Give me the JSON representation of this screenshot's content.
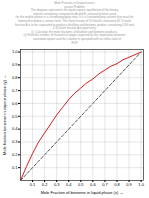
{
  "chart_data": {
    "type": "line",
    "xlabel": "Mole Fraction of benzene in liquid phase (x)",
    "ylabel": "Mole fraction benzene in vapour phase (y)",
    "annotations": [
      "Mole Fraction in Distpressures",
      "ession Problem",
      "The diagram represents the liquid-vapour equilibrium of the binary",
      "mixture containing components A and B, previously been used",
      "for the mobile phase in a chromatography step. It is a contaminating solvent that must be",
      "removed to below a certain level. The feed stream of 70 kmol/h containing 65 % mole",
      "fraction A is to be separated to produce distillate and bottoms product containing 0.90 and",
      "0.10 mole fraction A respectively.",
      "(i)  Calculate the mole fractions of distillate and bottoms products.",
      "(ii) Find the number of theoretical stages required for the separation between",
      "      saturated vapour and the column is operated with an reflux ratio of",
      "PDF"
    ],
    "x": [
      0.0,
      0.05,
      0.1,
      0.15,
      0.2,
      0.25,
      0.3,
      0.35,
      0.4,
      0.45,
      0.5,
      0.55,
      0.6,
      0.65,
      0.7,
      0.75,
      0.8,
      0.85,
      0.9,
      0.95,
      1.0
    ],
    "series": [
      {
        "color": "#cc2222",
        "line_style": "solid",
        "values": [
          0.0,
          0.11,
          0.21,
          0.3,
          0.37,
          0.44,
          0.51,
          0.57,
          0.63,
          0.68,
          0.72,
          0.76,
          0.79,
          0.83,
          0.86,
          0.89,
          0.91,
          0.94,
          0.96,
          0.98,
          1.0
        ]
      },
      {
        "color": "#555555",
        "line_style": "dashed",
        "values": [
          0.0,
          0.05,
          0.1,
          0.15,
          0.2,
          0.25,
          0.3,
          0.35,
          0.4,
          0.45,
          0.5,
          0.55,
          0.6,
          0.65,
          0.7,
          0.75,
          0.8,
          0.85,
          0.9,
          0.95,
          1.0
        ]
      }
    ],
    "xlim": [
      0.0,
      1.02
    ],
    "ylim": [
      0.0,
      1.02
    ],
    "xticks": [
      0.1,
      0.2,
      0.3,
      0.4,
      0.5,
      0.6,
      0.7,
      0.8,
      0.9,
      {
        "value": 1.0,
        "label": "1.0"
      }
    ],
    "yticks": [
      0.1,
      0.2,
      0.3,
      0.4,
      0.5,
      0.6,
      0.7,
      0.8,
      0.9,
      {
        "value": 1.0,
        "label": "1.0"
      }
    ],
    "grid": true
  }
}
